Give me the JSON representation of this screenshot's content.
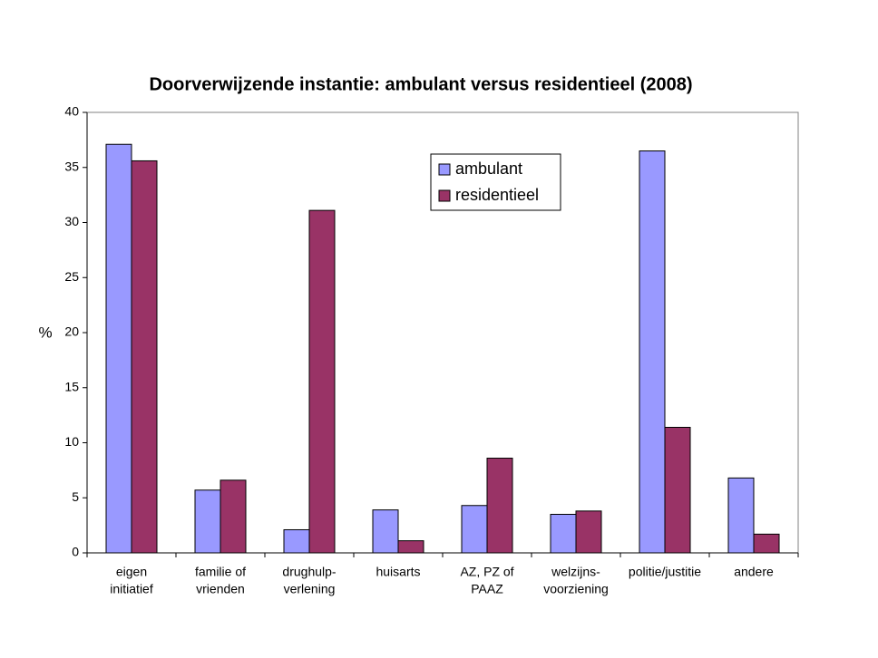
{
  "chart_data": {
    "type": "bar",
    "title": "Doorverwijzende instantie: ambulant versus residentieel (2008)",
    "y_label": "%",
    "categories": [
      [
        "eigen",
        "initiatief"
      ],
      [
        "familie of",
        "vrienden"
      ],
      [
        "drughulp-",
        "verlening"
      ],
      [
        "huisarts"
      ],
      [
        "AZ, PZ of",
        "PAAZ"
      ],
      [
        "welzijns-",
        "voorziening"
      ],
      [
        "politie/justitie"
      ],
      [
        "andere"
      ]
    ],
    "series": [
      {
        "name": "ambulant",
        "color": "#9999ff",
        "values": [
          37.1,
          5.7,
          2.1,
          3.9,
          4.3,
          3.5,
          36.5,
          6.8
        ]
      },
      {
        "name": "residentieel",
        "color": "#993366",
        "values": [
          35.6,
          6.6,
          31.1,
          1.1,
          8.6,
          3.8,
          11.4,
          1.7
        ]
      }
    ],
    "ylim": [
      0,
      40
    ],
    "yticks": [
      0,
      5,
      10,
      15,
      20,
      25,
      30,
      35,
      40
    ],
    "grid": false,
    "legend": "top-right"
  }
}
